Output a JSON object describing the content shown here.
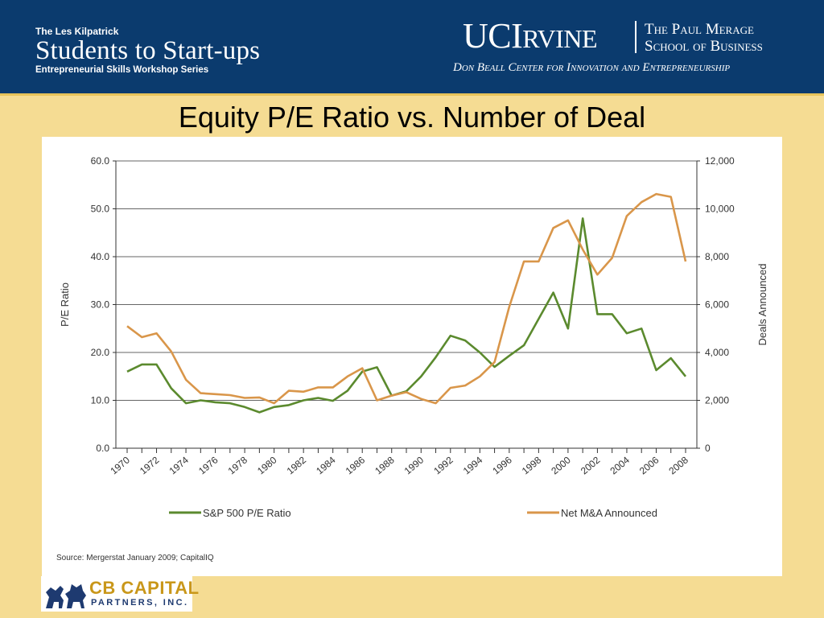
{
  "header": {
    "kicker": "The Les Kilpatrick",
    "title": "Students to Start-ups",
    "subtitle": "Entrepreneurial Skills Workshop Series",
    "uci_logo_big": "UCI",
    "uci_logo_rest": "RVINE",
    "uci_school_line1": "The Paul Merage",
    "uci_school_line2": "School of Business",
    "uci_center": "Don Beall Center for Innovation and Entrepreneurship"
  },
  "slide_title": "Equity P/E Ratio vs. Number of Deal",
  "source": "Source:  Mergerstat January 2009; CapitalIQ",
  "footer_logo": {
    "name": "CB CAPITAL",
    "sub": "PARTNERS, INC."
  },
  "colors": {
    "header_bg": "#0B3B6E",
    "slide_bg": "#F5DC93",
    "pe_line": "#5B8A2E",
    "ma_line": "#D9964A"
  },
  "chart_data": {
    "type": "line",
    "title": "",
    "x": [
      1970,
      1971,
      1972,
      1973,
      1974,
      1975,
      1976,
      1977,
      1978,
      1979,
      1980,
      1981,
      1982,
      1983,
      1984,
      1985,
      1986,
      1987,
      1988,
      1989,
      1990,
      1991,
      1992,
      1993,
      1994,
      1995,
      1996,
      1997,
      1998,
      1999,
      2000,
      2001,
      2002,
      2003,
      2004,
      2005,
      2006,
      2007,
      2008
    ],
    "x_tick_labels": [
      "1970",
      "1972",
      "1974",
      "1976",
      "1978",
      "1980",
      "1982",
      "1984",
      "1986",
      "1988",
      "1990",
      "1992",
      "1994",
      "1996",
      "1998",
      "2000",
      "2002",
      "2004",
      "2006",
      "2008"
    ],
    "ylabel_left": "P/E Ratio",
    "ylabel_right": "Deals Announced",
    "ylim_left": [
      0,
      60
    ],
    "ylim_right": [
      0,
      12000
    ],
    "yticks_left": [
      "0.0",
      "10.0",
      "20.0",
      "30.0",
      "40.0",
      "50.0",
      "60.0"
    ],
    "yticks_right": [
      "0",
      "2,000",
      "4,000",
      "6,000",
      "8,000",
      "10,000",
      "12,000"
    ],
    "grid": true,
    "legend_position": "bottom",
    "series": [
      {
        "name": "S&P 500 P/E Ratio",
        "axis": "left",
        "values": [
          16.0,
          17.5,
          17.5,
          12.5,
          9.4,
          10.0,
          9.6,
          9.4,
          8.6,
          7.5,
          8.6,
          9.0,
          10.0,
          10.5,
          9.9,
          12.0,
          16.0,
          16.9,
          11.0,
          11.9,
          15.0,
          19.0,
          23.5,
          22.5,
          20.0,
          17.0,
          19.3,
          21.5,
          27.0,
          32.5,
          25.0,
          48.0,
          28.0,
          28.0,
          24.0,
          25.0,
          16.3,
          18.8,
          15.0
        ]
      },
      {
        "name": "Net M&A Announced",
        "axis": "right",
        "values": [
          5100,
          4640,
          4800,
          4040,
          2860,
          2300,
          2260,
          2220,
          2100,
          2120,
          1880,
          2400,
          2360,
          2540,
          2540,
          3000,
          3340,
          2000,
          2200,
          2340,
          2060,
          1880,
          2520,
          2620,
          3000,
          3600,
          5900,
          7800,
          7800,
          9200,
          9520,
          8300,
          7250,
          7950,
          9700,
          10280,
          10620,
          10500,
          7800
        ]
      }
    ]
  }
}
